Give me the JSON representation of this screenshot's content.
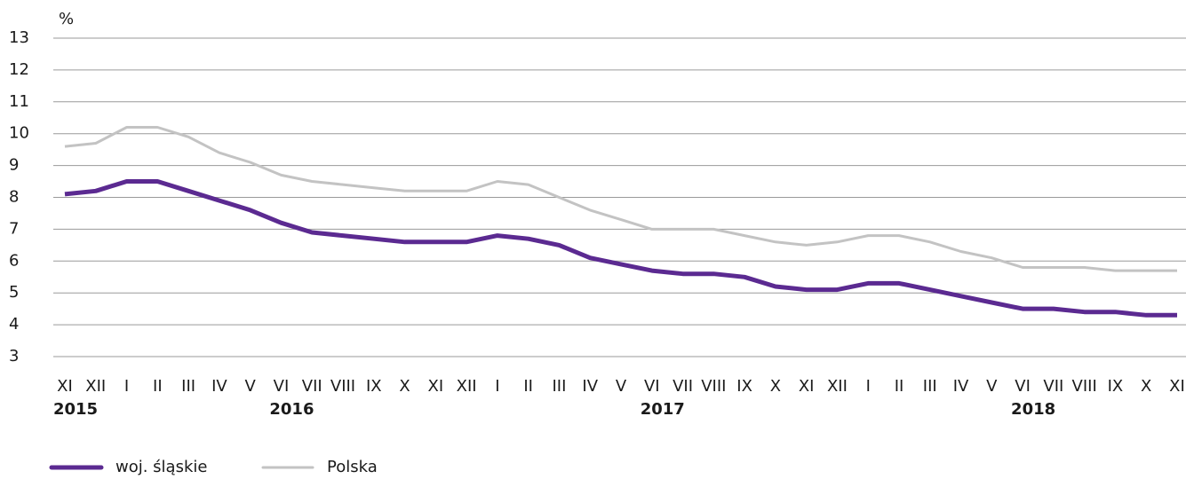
{
  "chart_data": {
    "type": "line",
    "y_label": "%",
    "categories": [
      "XI",
      "XII",
      "I",
      "II",
      "III",
      "IV",
      "V",
      "VI",
      "VII",
      "VIII",
      "IX",
      "X",
      "XI",
      "XII",
      "I",
      "II",
      "III",
      "IV",
      "V",
      "VI",
      "VII",
      "VIII",
      "IX",
      "X",
      "XI",
      "XII",
      "I",
      "II",
      "III",
      "IV",
      "V",
      "VI",
      "VII",
      "VIII",
      "IX",
      "X",
      "XI"
    ],
    "year_labels": [
      "2015",
      "2016",
      "2017",
      "2018"
    ],
    "series": [
      {
        "name": "woj. śląskie",
        "color": "#5b2a91",
        "values": [
          8.1,
          8.2,
          8.5,
          8.5,
          8.2,
          7.9,
          7.6,
          7.2,
          6.9,
          6.8,
          6.7,
          6.6,
          6.6,
          6.6,
          6.8,
          6.7,
          6.5,
          6.1,
          5.9,
          5.7,
          5.6,
          5.6,
          5.5,
          5.2,
          5.1,
          5.1,
          5.3,
          5.3,
          5.1,
          4.9,
          4.7,
          4.5,
          4.5,
          4.4,
          4.4,
          4.3,
          4.3
        ]
      },
      {
        "name": "Polska",
        "color": "#c3c3c3",
        "values": [
          9.6,
          9.7,
          10.2,
          10.2,
          9.9,
          9.4,
          9.1,
          8.7,
          8.5,
          8.4,
          8.3,
          8.2,
          8.2,
          8.2,
          8.5,
          8.4,
          8.0,
          7.6,
          7.3,
          7.0,
          7.0,
          7.0,
          6.8,
          6.6,
          6.5,
          6.6,
          6.8,
          6.8,
          6.6,
          6.3,
          6.1,
          5.8,
          5.8,
          5.8,
          5.7,
          5.7,
          5.7
        ]
      }
    ],
    "ylim": [
      3,
      13
    ],
    "yticks": [
      3,
      4,
      5,
      6,
      7,
      8,
      9,
      10,
      11,
      12,
      13
    ],
    "grid": true
  }
}
